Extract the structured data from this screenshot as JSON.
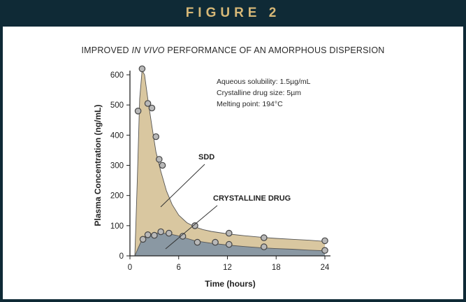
{
  "header": {
    "label": "FIGURE 2"
  },
  "chart_data": {
    "type": "area",
    "title_parts": [
      "IMPROVED ",
      "IN VIVO",
      " PERFORMANCE OF AN AMORPHOUS DISPERSION"
    ],
    "xlabel": "Time (hours)",
    "ylabel": "Plasma Concentration (ng/mL)",
    "xlim": [
      0,
      24
    ],
    "ylim": [
      0,
      600
    ],
    "xticks": [
      0,
      6,
      12,
      18,
      24
    ],
    "yticks": [
      0,
      100,
      200,
      300,
      400,
      500,
      600
    ],
    "grid": false,
    "legend": "none",
    "annotations": [
      "Aqueous solubility: 1.5µg/mL",
      "Crystalline drug size: 5µm",
      "Melting point: 194°C"
    ],
    "series": [
      {
        "name": "SDD",
        "color": "#d9c7a0",
        "curve": [
          [
            0.6,
            0
          ],
          [
            0.9,
            250
          ],
          [
            1.2,
            520
          ],
          [
            1.5,
            615
          ],
          [
            1.8,
            600
          ],
          [
            2.2,
            520
          ],
          [
            2.7,
            430
          ],
          [
            3.2,
            345
          ],
          [
            3.8,
            280
          ],
          [
            4.5,
            215
          ],
          [
            5.2,
            170
          ],
          [
            6,
            135
          ],
          [
            7,
            110
          ],
          [
            8,
            96
          ],
          [
            9,
            87
          ],
          [
            10,
            81
          ],
          [
            12,
            73
          ],
          [
            14,
            67
          ],
          [
            16,
            62
          ],
          [
            18,
            58
          ],
          [
            20,
            55
          ],
          [
            22,
            52
          ],
          [
            24,
            48
          ]
        ],
        "points": [
          [
            1.0,
            480
          ],
          [
            1.5,
            620
          ],
          [
            2.2,
            505
          ],
          [
            2.7,
            490
          ],
          [
            3.2,
            395
          ],
          [
            3.6,
            320
          ],
          [
            4.0,
            300
          ],
          [
            8.0,
            100
          ],
          [
            12.2,
            75
          ],
          [
            16.5,
            60
          ],
          [
            24.0,
            50
          ]
        ]
      },
      {
        "name": "CRYSTALLINE DRUG",
        "color": "#8a98a3",
        "curve": [
          [
            0.6,
            0
          ],
          [
            1.0,
            25
          ],
          [
            1.5,
            55
          ],
          [
            2.0,
            68
          ],
          [
            3.0,
            75
          ],
          [
            3.8,
            76
          ],
          [
            5,
            72
          ],
          [
            6,
            66
          ],
          [
            7,
            58
          ],
          [
            8,
            50
          ],
          [
            10,
            42
          ],
          [
            12,
            36
          ],
          [
            14,
            31
          ],
          [
            16,
            27
          ],
          [
            18,
            24
          ],
          [
            20,
            22
          ],
          [
            22,
            19
          ],
          [
            24,
            17
          ]
        ],
        "points": [
          [
            1.6,
            55
          ],
          [
            2.2,
            70
          ],
          [
            3.0,
            68
          ],
          [
            3.8,
            80
          ],
          [
            4.8,
            75
          ],
          [
            6.5,
            65
          ],
          [
            8.3,
            45
          ],
          [
            10.5,
            45
          ],
          [
            12.2,
            38
          ],
          [
            16.5,
            30
          ],
          [
            24.0,
            18
          ]
        ]
      }
    ],
    "labels": [
      {
        "text": "SDD",
        "series": "SDD"
      },
      {
        "text": "CRYSTALLINE DRUG",
        "series": "CRYSTALLINE DRUG"
      }
    ]
  }
}
